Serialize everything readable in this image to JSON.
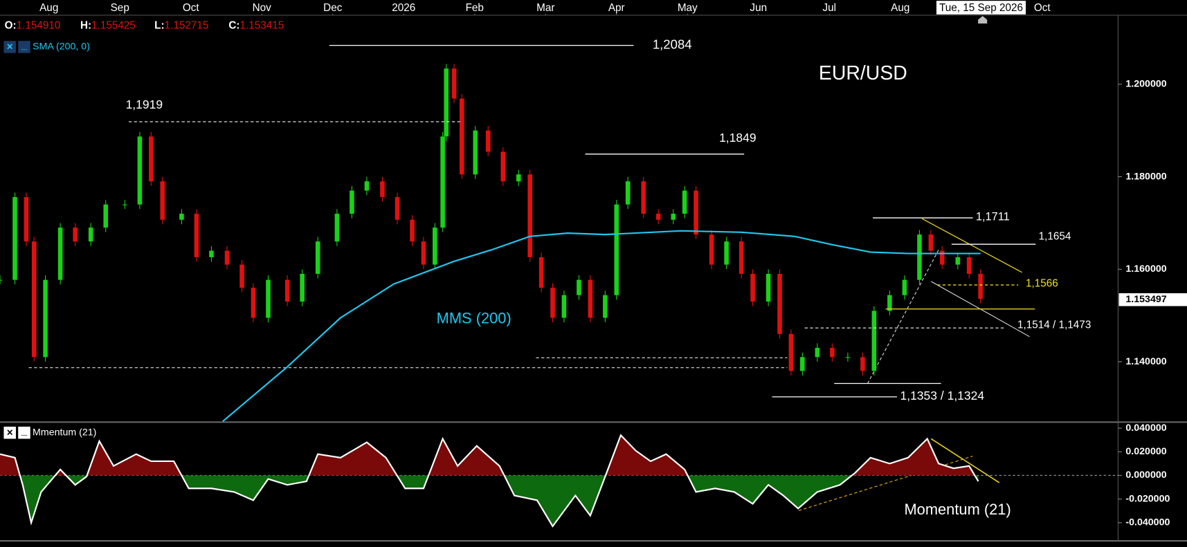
{
  "chart_data": [
    {
      "type": "candlestick",
      "title": "EUR/USD",
      "header": [
        {
          "name": "O:",
          "value": "1.154910"
        },
        {
          "name": "H:",
          "value": "1.155425"
        },
        {
          "name": "L:",
          "value": "1.152715"
        },
        {
          "name": "C:",
          "value": "1.153415"
        }
      ],
      "xlim": [
        -0.69,
        15.07
      ],
      "xticks": [
        {
          "value": 0,
          "label": "Aug"
        },
        {
          "value": 1,
          "label": "Sep"
        },
        {
          "value": 2,
          "label": "Oct"
        },
        {
          "value": 3,
          "label": "Nov"
        },
        {
          "value": 4,
          "label": "Dec"
        },
        {
          "value": 5,
          "label": "2026"
        },
        {
          "value": 6,
          "label": "Feb"
        },
        {
          "value": 7,
          "label": "Mar"
        },
        {
          "value": 8,
          "label": "Apr"
        },
        {
          "value": 9,
          "label": "May"
        },
        {
          "value": 10,
          "label": "Jun"
        },
        {
          "value": 11,
          "label": "Jul"
        },
        {
          "value": 12,
          "label": "Aug"
        },
        {
          "value": 14,
          "label": "Oct"
        }
      ],
      "crosshair": {
        "value": 13.16,
        "label": "Tue, 15 Sep 2026"
      },
      "ylim": [
        1.1271,
        1.2146
      ],
      "yticks": [
        {
          "value": 1.14,
          "label": "1.140000"
        },
        {
          "value": 1.16,
          "label": "1.160000"
        },
        {
          "value": 1.18,
          "label": "1.180000"
        },
        {
          "value": 1.2,
          "label": "1.200000"
        }
      ],
      "last_price": 1.153497,
      "up_color": "#19d219",
      "down_color": "#e01010",
      "x": [
        -0.69,
        -0.48,
        -0.32,
        -0.21,
        -0.05,
        0.16,
        0.37,
        0.59,
        0.8,
        1.07,
        1.28,
        1.44,
        1.6,
        1.87,
        2.08,
        2.29,
        2.51,
        2.72,
        2.88,
        3.09,
        3.36,
        3.57,
        3.79,
        4.06,
        4.27,
        4.48,
        4.7,
        4.91,
        5.12,
        5.28,
        5.44,
        5.55,
        5.6,
        5.71,
        5.82,
        6.01,
        6.19,
        6.4,
        6.62,
        6.78,
        6.94,
        7.1,
        7.26,
        7.47,
        7.63,
        7.84,
        8.0,
        8.16,
        8.38,
        8.59,
        8.8,
        8.96,
        9.12,
        9.34,
        9.55,
        9.76,
        9.92,
        10.14,
        10.3,
        10.46,
        10.62,
        10.83,
        11.04,
        11.26,
        11.47,
        11.63,
        11.85,
        12.06,
        12.27,
        12.43,
        12.59,
        12.81,
        12.97,
        13.13
      ],
      "close": [
        1.1577,
        1.1756,
        1.166,
        1.141,
        1.1577,
        1.169,
        1.166,
        1.169,
        1.174,
        1.174,
        1.1887,
        1.179,
        1.1707,
        1.172,
        1.1626,
        1.164,
        1.161,
        1.156,
        1.1495,
        1.1577,
        1.153,
        1.159,
        1.166,
        1.172,
        1.177,
        1.179,
        1.1756,
        1.1707,
        1.166,
        1.161,
        1.169,
        1.1887,
        1.2034,
        1.1969,
        1.1805,
        1.19,
        1.1854,
        1.179,
        1.1805,
        1.1626,
        1.156,
        1.1495,
        1.1544,
        1.1577,
        1.1495,
        1.1544,
        1.174,
        1.179,
        1.172,
        1.1707,
        1.172,
        1.177,
        1.1675,
        1.161,
        1.166,
        1.159,
        1.153,
        1.159,
        1.146,
        1.138,
        1.141,
        1.143,
        1.141,
        1.141,
        1.138,
        1.151,
        1.1544,
        1.1577,
        1.1675,
        1.164,
        1.161,
        1.1626,
        1.159,
        1.1536
      ],
      "sma": {
        "name": "SMA (200, 0)",
        "label": "MMS (200)",
        "color": "#1ec8ee",
        "x": [
          2.45,
          3.36,
          4.11,
          4.86,
          5.71,
          6.24,
          6.78,
          7.31,
          7.84,
          8.91,
          9.76,
          10.51,
          11.04,
          11.58,
          12.11,
          13.13
        ],
        "values": [
          1.1271,
          1.1389,
          1.1495,
          1.1568,
          1.1617,
          1.1642,
          1.1671,
          1.1678,
          1.1675,
          1.1683,
          1.168,
          1.1671,
          1.1653,
          1.1637,
          1.1634,
          1.1634
        ]
      },
      "levels": [
        {
          "label": "1,2084",
          "values": [
            1.2084
          ]
        },
        {
          "label": "1,1919",
          "values": [
            1.1919
          ]
        },
        {
          "label": "1,1849",
          "values": [
            1.1849
          ]
        },
        {
          "label": "1,1711",
          "values": [
            1.1711
          ]
        },
        {
          "label": "1,1654",
          "values": [
            1.1654
          ]
        },
        {
          "label": "1,1566",
          "values": [
            1.1566
          ]
        },
        {
          "label": "1,1514 / 1,1473",
          "values": [
            1.1514,
            1.1473
          ]
        },
        {
          "label": "1,1353 / 1,1324",
          "values": [
            1.1353,
            1.1324
          ]
        }
      ]
    },
    {
      "type": "area",
      "name": "Mmentum (21)",
      "label": "Momentum (21)",
      "xlim": [
        -0.69,
        15.07
      ],
      "ylim": [
        -0.0541,
        0.0438
      ],
      "yticks": [
        {
          "value": 0.04,
          "label": "0.040000"
        },
        {
          "value": 0.02,
          "label": "0.020000"
        },
        {
          "value": 0,
          "label": "0.000000"
        },
        {
          "value": -0.02,
          "label": "-0.020000"
        },
        {
          "value": -0.04,
          "label": "-0.040000"
        }
      ],
      "positive_color": "#7a0a0a",
      "negative_color": "#0e6a0e",
      "line_color": "#ffffff",
      "x": [
        -0.69,
        -0.48,
        -0.37,
        -0.25,
        -0.11,
        0.16,
        0.37,
        0.53,
        0.71,
        0.91,
        1.23,
        1.44,
        1.76,
        1.97,
        2.29,
        2.61,
        2.88,
        3.09,
        3.36,
        3.63,
        3.79,
        4.11,
        4.48,
        4.75,
        5.02,
        5.28,
        5.55,
        5.76,
        6.03,
        6.35,
        6.56,
        6.88,
        7.1,
        7.42,
        7.63,
        7.84,
        8.06,
        8.27,
        8.48,
        8.7,
        8.96,
        9.12,
        9.39,
        9.66,
        9.92,
        10.14,
        10.35,
        10.56,
        10.83,
        11.15,
        11.36,
        11.58,
        11.85,
        12.11,
        12.38,
        12.54,
        12.75,
        12.97,
        13.1
      ],
      "values": [
        0.018,
        0.015,
        -0.008,
        -0.04,
        -0.014,
        0.005,
        -0.008,
        -0.001,
        0.029,
        0.008,
        0.018,
        0.012,
        0.012,
        -0.011,
        -0.011,
        -0.014,
        -0.021,
        -0.003,
        -0.008,
        -0.005,
        0.018,
        0.015,
        0.028,
        0.015,
        -0.011,
        -0.011,
        0.031,
        0.008,
        0.025,
        0.008,
        -0.017,
        -0.021,
        -0.043,
        -0.017,
        -0.034,
        -0.001,
        0.034,
        0.021,
        0.012,
        0.018,
        0.005,
        -0.014,
        -0.011,
        -0.014,
        -0.024,
        -0.008,
        -0.017,
        -0.028,
        -0.014,
        -0.008,
        0.002,
        0.015,
        0.01,
        0.015,
        0.031,
        0.01,
        0.006,
        0.008,
        -0.005
      ]
    }
  ]
}
